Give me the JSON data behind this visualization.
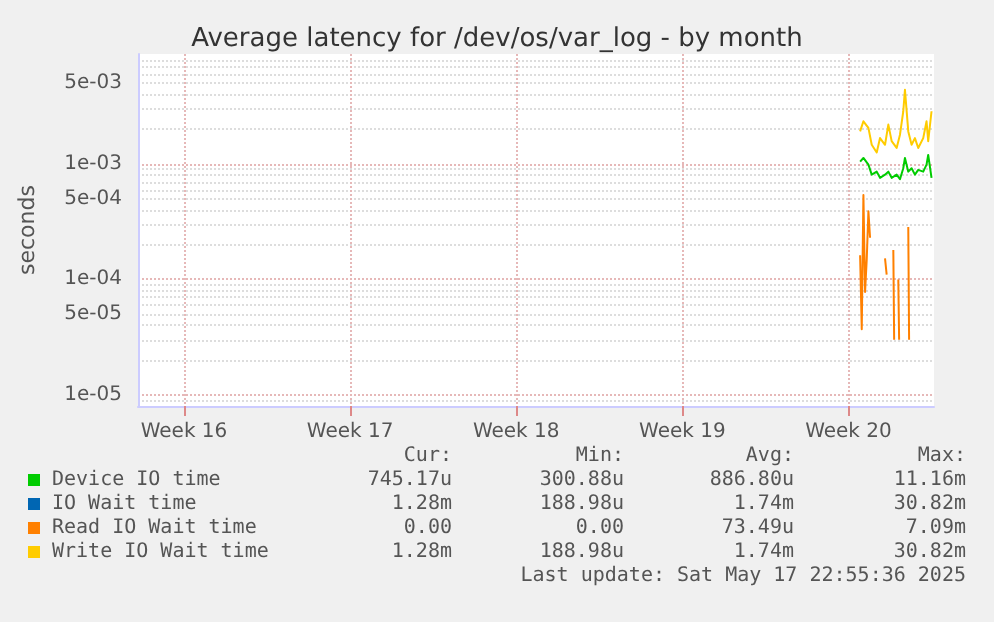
{
  "chart_data": {
    "type": "line",
    "title": "Average latency for /dev/os/var_log - by month",
    "ylabel": "seconds",
    "log": "y",
    "grid": true,
    "legend": "bottom",
    "marker": "none",
    "line_style": "solid",
    "xlim": [
      "2025-04-14T12:00",
      "2025-05-18T01:00"
    ],
    "xticks": [
      {
        "value": "2025-04-16T10:30",
        "label": "Week 16"
      },
      {
        "value": "2025-04-23T10:30",
        "label": "Week 17"
      },
      {
        "value": "2025-04-30T10:30",
        "label": "Week 18"
      },
      {
        "value": "2025-05-07T10:30",
        "label": "Week 19"
      },
      {
        "value": "2025-05-14T10:30",
        "label": "Week 20"
      }
    ],
    "ylim": [
      8e-06,
      0.009
    ],
    "yticks": [
      {
        "value": 1e-05,
        "label": "1e-05"
      },
      {
        "value": 5e-05,
        "label": "5e-05"
      },
      {
        "value": 0.0001,
        "label": "1e-04"
      },
      {
        "value": 0.0005,
        "label": "5e-04"
      },
      {
        "value": 0.001,
        "label": "1e-03"
      },
      {
        "value": 0.005,
        "label": "5e-03"
      }
    ],
    "series": [
      {
        "name": "Device IO time",
        "color": "#00cc00",
        "x": [
          "2025-05-14T22:16",
          "2025-05-15T01:37",
          "2025-05-15T06:40",
          "2025-05-15T10:01",
          "2025-05-15T15:04",
          "2025-05-15T18:25",
          "2025-05-15T23:28",
          "2025-05-16T02:49",
          "2025-05-16T06:11",
          "2025-05-16T11:13",
          "2025-05-16T14:35",
          "2025-05-16T17:56",
          "2025-05-16T19:37",
          "2025-05-16T22:59",
          "2025-05-17T02:20",
          "2025-05-17T05:42",
          "2025-05-17T09:03",
          "2025-05-17T14:06",
          "2025-05-17T17:28",
          "2025-05-17T19:08",
          "2025-05-17T22:30"
        ],
        "values": [
          0.00105,
          0.00113,
          0.00099,
          0.00081,
          0.00086,
          0.00076,
          0.00081,
          0.00086,
          0.00076,
          0.00081,
          0.00074,
          0.00092,
          0.00113,
          0.00086,
          0.00092,
          0.00081,
          0.00089,
          0.00086,
          0.00099,
          0.0012,
          0.00076
        ]
      },
      {
        "name": "IO Wait time",
        "color": "#0066b3"
      },
      {
        "name": "Read IO Wait time",
        "color": "#ff8000",
        "x": [
          "2025-05-14T22:16",
          "2025-05-14T23:56",
          "2025-05-15T01:37",
          "2025-05-15T03:18",
          "2025-05-15T04:59",
          "2025-05-15T06:40",
          "2025-05-15T08:20",
          "2025-05-15T10:01",
          "2025-05-15T22:37",
          "2025-05-15T23:28",
          "2025-05-16T01:08",
          "2025-05-16T01:59",
          "2025-05-16T07:01",
          "2025-05-16T07:52",
          "2025-05-16T08:42",
          "2025-05-16T12:04",
          "2025-05-16T12:54",
          "2025-05-16T13:44",
          "2025-05-16T22:08",
          "2025-05-16T22:59",
          "2025-05-16T23:49"
        ],
        "values": [
          0.000162,
          3.7e-05,
          0.00054,
          7.8e-05,
          0.00015,
          0.00039,
          0.00023,
          null,
          null,
          0.000152,
          0.00011,
          null,
          null,
          0.00018,
          3e-05,
          null,
          0.0001,
          3e-05,
          null,
          0.000285,
          3e-05
        ]
      },
      {
        "name": "Write IO Wait time",
        "color": "#ffcc00",
        "x": [
          "2025-05-14T22:16",
          "2025-05-15T01:37",
          "2025-05-15T06:40",
          "2025-05-15T10:01",
          "2025-05-15T15:04",
          "2025-05-15T18:25",
          "2025-05-15T23:28",
          "2025-05-16T02:49",
          "2025-05-16T06:11",
          "2025-05-16T11:13",
          "2025-05-16T14:35",
          "2025-05-16T17:56",
          "2025-05-16T19:37",
          "2025-05-16T22:59",
          "2025-05-17T02:20",
          "2025-05-17T05:42",
          "2025-05-17T09:03",
          "2025-05-17T14:06",
          "2025-05-17T17:28",
          "2025-05-17T19:08",
          "2025-05-17T22:30"
        ],
        "values": [
          0.00192,
          0.00235,
          0.00206,
          0.00147,
          0.00126,
          0.00168,
          0.00147,
          0.0022,
          0.00158,
          0.00138,
          0.0018,
          0.00287,
          0.0044,
          0.00192,
          0.00147,
          0.00168,
          0.00138,
          0.00168,
          0.00235,
          0.00158,
          0.00287
        ]
      }
    ],
    "annotations": [
      "Cur:",
      "Min:",
      "Avg:",
      "Max:",
      "745.17u",
      "300.88u",
      "886.80u",
      "11.16m",
      "1.28m",
      "188.98u",
      "1.74m",
      "30.82m",
      "0.00",
      "0.00",
      "73.49u",
      "7.09m",
      "1.28m",
      "188.98u",
      "1.74m",
      "30.82m",
      "Last update: Sat May 17 22:55:36 2025"
    ]
  }
}
